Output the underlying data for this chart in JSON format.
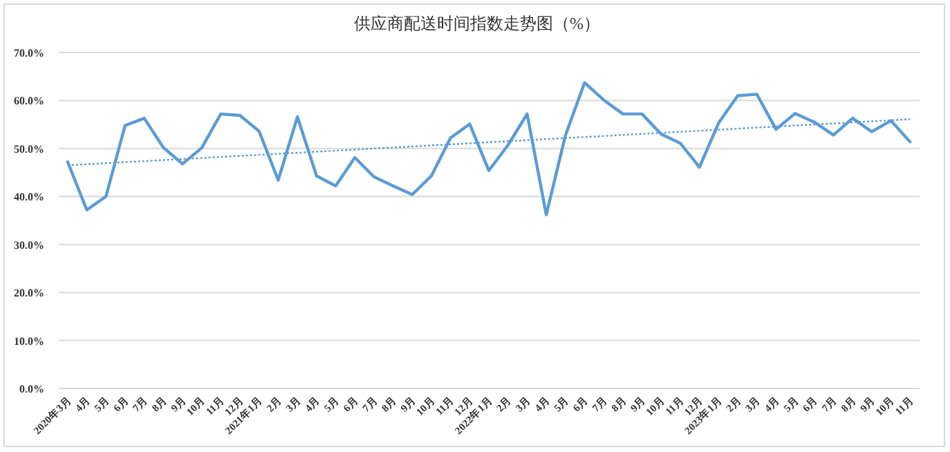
{
  "chart_data": {
    "type": "line",
    "title": "供应商配送时间指数走势图（%）",
    "categories": [
      "2020年3月",
      "4月",
      "5月",
      "6月",
      "7月",
      "8月",
      "9月",
      "10月",
      "11月",
      "12月",
      "2021年1月",
      "2月",
      "3月",
      "4月",
      "5月",
      "6月",
      "7月",
      "8月",
      "9月",
      "10月",
      "11月",
      "12月",
      "2022年1月",
      "2月",
      "3月",
      "4月",
      "5月",
      "6月",
      "7月",
      "8月",
      "9月",
      "10月",
      "11月",
      "12月",
      "2023年1月",
      "2月",
      "3月",
      "4月",
      "5月",
      "6月",
      "7月",
      "8月",
      "9月",
      "10月",
      "11月"
    ],
    "series": [
      {
        "color": "#5b9bd5",
        "line_style": "solid",
        "values": [
          47.2,
          37.2,
          40.0,
          54.8,
          56.3,
          50.2,
          46.8,
          50.1,
          57.2,
          56.9,
          53.6,
          43.4,
          56.6,
          44.3,
          42.2,
          48.1,
          44.1,
          42.2,
          40.4,
          44.3,
          52.2,
          55.1,
          45.4,
          50.7,
          57.2,
          36.2,
          52.7,
          63.7,
          60.1,
          57.2,
          57.2,
          53.0,
          51.1,
          46.1,
          55.3,
          61.0,
          61.3,
          54.0,
          57.3,
          55.5,
          52.8,
          56.3,
          53.5,
          55.8,
          51.4
        ]
      },
      {
        "color": "#5b9bd5",
        "line_style": "dotted",
        "values": [
          46.5,
          null,
          null,
          null,
          null,
          null,
          null,
          null,
          null,
          null,
          null,
          null,
          null,
          null,
          null,
          null,
          null,
          null,
          null,
          null,
          null,
          null,
          null,
          null,
          null,
          null,
          null,
          null,
          null,
          null,
          null,
          null,
          null,
          null,
          null,
          null,
          null,
          null,
          null,
          null,
          null,
          null,
          null,
          null,
          56.1
        ]
      }
    ],
    "ylim": [
      0,
      70
    ],
    "yticks": [
      {
        "value": 0,
        "label": "0.0%"
      },
      {
        "value": 10,
        "label": "10.0%"
      },
      {
        "value": 20,
        "label": "20.0%"
      },
      {
        "value": 30,
        "label": "30.0%"
      },
      {
        "value": 40,
        "label": "40.0%"
      },
      {
        "value": 50,
        "label": "50.0%"
      },
      {
        "value": 60,
        "label": "60.0%"
      },
      {
        "value": 70,
        "label": "70.0%"
      }
    ],
    "grid": "y"
  }
}
